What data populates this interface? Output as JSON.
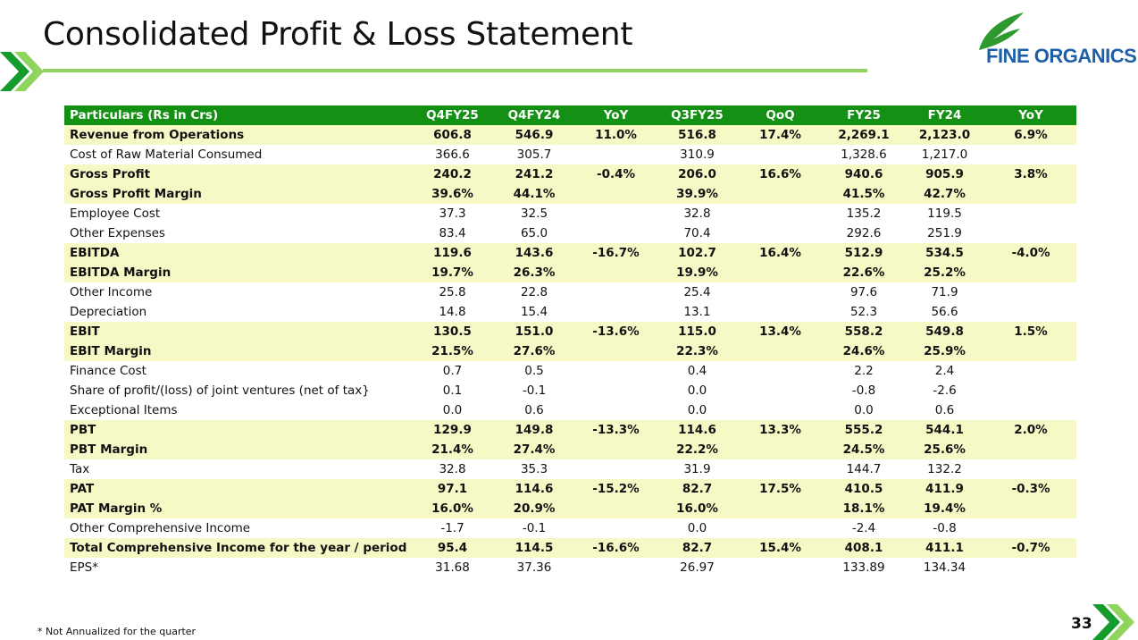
{
  "title": "Consolidated Profit & Loss Statement",
  "brand": {
    "name": "FINE ORGANICS",
    "text_color": "#1f5fa8",
    "leaf_color": "#2e9a2e"
  },
  "colors": {
    "accent_green": "#8ed45f",
    "header_green": "#149014",
    "highlight": "#f6f9c5",
    "chevron_dark": "#159a2c",
    "chevron_light": "#8ed45f"
  },
  "table": {
    "headers": [
      "Particulars (Rs in Crs)",
      "Q4FY25",
      "Q4FY24",
      "YoY",
      "Q3FY25",
      "QoQ",
      "FY25",
      "FY24",
      "YoY"
    ],
    "rows": [
      {
        "cells": [
          "Revenue from Operations",
          "606.8",
          "546.9",
          "11.0%",
          "516.8",
          "17.4%",
          "2,269.1",
          "2,123.0",
          "6.9%"
        ],
        "highlight": true
      },
      {
        "cells": [
          "Cost of Raw Material Consumed",
          "366.6",
          "305.7",
          "",
          "310.9",
          "",
          "1,328.6",
          "1,217.0",
          ""
        ],
        "highlight": false
      },
      {
        "cells": [
          "Gross Profit",
          "240.2",
          "241.2",
          "-0.4%",
          "206.0",
          "16.6%",
          "940.6",
          "905.9",
          "3.8%"
        ],
        "highlight": true
      },
      {
        "cells": [
          "Gross Profit Margin",
          "39.6%",
          "44.1%",
          "",
          "39.9%",
          "",
          "41.5%",
          "42.7%",
          ""
        ],
        "highlight": true
      },
      {
        "cells": [
          "Employee Cost",
          "37.3",
          "32.5",
          "",
          "32.8",
          "",
          "135.2",
          "119.5",
          ""
        ],
        "highlight": false
      },
      {
        "cells": [
          "Other Expenses",
          "83.4",
          "65.0",
          "",
          "70.4",
          "",
          "292.6",
          "251.9",
          ""
        ],
        "highlight": false
      },
      {
        "cells": [
          "EBITDA",
          "119.6",
          "143.6",
          "-16.7%",
          "102.7",
          "16.4%",
          "512.9",
          "534.5",
          "-4.0%"
        ],
        "highlight": true
      },
      {
        "cells": [
          "EBITDA Margin",
          "19.7%",
          "26.3%",
          "",
          "19.9%",
          "",
          "22.6%",
          "25.2%",
          ""
        ],
        "highlight": true
      },
      {
        "cells": [
          "Other Income",
          "25.8",
          "22.8",
          "",
          "25.4",
          "",
          "97.6",
          "71.9",
          ""
        ],
        "highlight": false
      },
      {
        "cells": [
          "Depreciation",
          "14.8",
          "15.4",
          "",
          "13.1",
          "",
          "52.3",
          "56.6",
          ""
        ],
        "highlight": false
      },
      {
        "cells": [
          "EBIT",
          "130.5",
          "151.0",
          "-13.6%",
          "115.0",
          "13.4%",
          "558.2",
          "549.8",
          "1.5%"
        ],
        "highlight": true
      },
      {
        "cells": [
          "EBIT Margin",
          "21.5%",
          "27.6%",
          "",
          "22.3%",
          "",
          "24.6%",
          "25.9%",
          ""
        ],
        "highlight": true
      },
      {
        "cells": [
          "Finance Cost",
          "0.7",
          "0.5",
          "",
          "0.4",
          "",
          "2.2",
          "2.4",
          ""
        ],
        "highlight": false
      },
      {
        "cells": [
          "Share of profit/(loss) of joint ventures (net of tax}",
          "0.1",
          "-0.1",
          "",
          "0.0",
          "",
          "-0.8",
          "-2.6",
          ""
        ],
        "highlight": false
      },
      {
        "cells": [
          "Exceptional Items",
          "0.0",
          "0.6",
          "",
          "0.0",
          "",
          "0.0",
          "0.6",
          ""
        ],
        "highlight": false
      },
      {
        "cells": [
          "PBT",
          "129.9",
          "149.8",
          "-13.3%",
          "114.6",
          "13.3%",
          "555.2",
          "544.1",
          "2.0%"
        ],
        "highlight": true
      },
      {
        "cells": [
          "PBT Margin",
          "21.4%",
          "27.4%",
          "",
          "22.2%",
          "",
          "24.5%",
          "25.6%",
          ""
        ],
        "highlight": true
      },
      {
        "cells": [
          "Tax",
          "32.8",
          "35.3",
          "",
          "31.9",
          "",
          "144.7",
          "132.2",
          ""
        ],
        "highlight": false
      },
      {
        "cells": [
          "PAT",
          "97.1",
          "114.6",
          "-15.2%",
          "82.7",
          "17.5%",
          "410.5",
          "411.9",
          "-0.3%"
        ],
        "highlight": true
      },
      {
        "cells": [
          "PAT Margin %",
          "16.0%",
          "20.9%",
          "",
          "16.0%",
          "",
          "18.1%",
          "19.4%",
          ""
        ],
        "highlight": true
      },
      {
        "cells": [
          "Other Comprehensive Income",
          "-1.7",
          "-0.1",
          "",
          "0.0",
          "",
          "-2.4",
          "-0.8",
          ""
        ],
        "highlight": false
      },
      {
        "cells": [
          "Total Comprehensive Income for the year / period",
          "95.4",
          "114.5",
          "-16.6%",
          "82.7",
          "15.4%",
          "408.1",
          "411.1",
          "-0.7%"
        ],
        "highlight": true
      },
      {
        "cells": [
          "EPS*",
          "31.68",
          "37.36",
          "",
          "26.97",
          "",
          "133.89",
          "134.34",
          ""
        ],
        "highlight": false
      }
    ]
  },
  "footnote": "* Not Annualized for the quarter",
  "page_number": "33"
}
